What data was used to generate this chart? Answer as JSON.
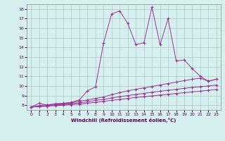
{
  "xlabel": "Windchill (Refroidissement éolien,°C)",
  "bg_color": "#d6f0ef",
  "line_color": "#993399",
  "grid_color": "#b0c8c8",
  "x_ticks": [
    0,
    1,
    2,
    3,
    4,
    5,
    6,
    7,
    8,
    9,
    10,
    11,
    12,
    13,
    14,
    15,
    16,
    17,
    18,
    19,
    20,
    21,
    22,
    23
  ],
  "y_ticks": [
    8,
    9,
    10,
    11,
    12,
    13,
    14,
    15,
    16,
    17,
    18
  ],
  "ylim": [
    7.5,
    18.5
  ],
  "xlim": [
    -0.5,
    23.5
  ],
  "series1_x": [
    0,
    1,
    2,
    3,
    4,
    5,
    6,
    7,
    8,
    9,
    10,
    11,
    12,
    13,
    14,
    15,
    16,
    17,
    18,
    19,
    20,
    21,
    22,
    23
  ],
  "series1_y": [
    7.8,
    8.2,
    8.0,
    8.15,
    8.2,
    8.3,
    8.55,
    9.5,
    9.9,
    14.5,
    17.5,
    17.8,
    16.5,
    14.3,
    14.5,
    18.2,
    14.3,
    17.0,
    12.6,
    12.7,
    11.8,
    11.0,
    10.5,
    10.7
  ],
  "series2_x": [
    0,
    1,
    2,
    3,
    4,
    5,
    6,
    7,
    8,
    9,
    10,
    11,
    12,
    13,
    14,
    15,
    16,
    17,
    18,
    19,
    20,
    21,
    22,
    23
  ],
  "series2_y": [
    7.8,
    7.95,
    8.05,
    8.1,
    8.15,
    8.25,
    8.4,
    8.55,
    8.7,
    8.85,
    9.1,
    9.3,
    9.5,
    9.65,
    9.8,
    9.95,
    10.1,
    10.25,
    10.4,
    10.55,
    10.7,
    10.8,
    10.5,
    10.7
  ],
  "series3_x": [
    0,
    1,
    2,
    3,
    4,
    5,
    6,
    7,
    8,
    9,
    10,
    11,
    12,
    13,
    14,
    15,
    16,
    17,
    18,
    19,
    20,
    21,
    22,
    23
  ],
  "series3_y": [
    7.8,
    7.88,
    7.95,
    8.02,
    8.08,
    8.15,
    8.25,
    8.35,
    8.5,
    8.6,
    8.75,
    8.88,
    9.0,
    9.12,
    9.22,
    9.35,
    9.45,
    9.55,
    9.65,
    9.75,
    9.85,
    9.92,
    10.0,
    10.1
  ],
  "series4_x": [
    0,
    1,
    2,
    3,
    4,
    5,
    6,
    7,
    8,
    9,
    10,
    11,
    12,
    13,
    14,
    15,
    16,
    17,
    18,
    19,
    20,
    21,
    22,
    23
  ],
  "series4_y": [
    7.8,
    7.85,
    7.9,
    7.95,
    8.0,
    8.05,
    8.12,
    8.2,
    8.3,
    8.4,
    8.5,
    8.6,
    8.7,
    8.8,
    8.88,
    8.96,
    9.05,
    9.13,
    9.22,
    9.3,
    9.38,
    9.46,
    9.55,
    9.63
  ]
}
